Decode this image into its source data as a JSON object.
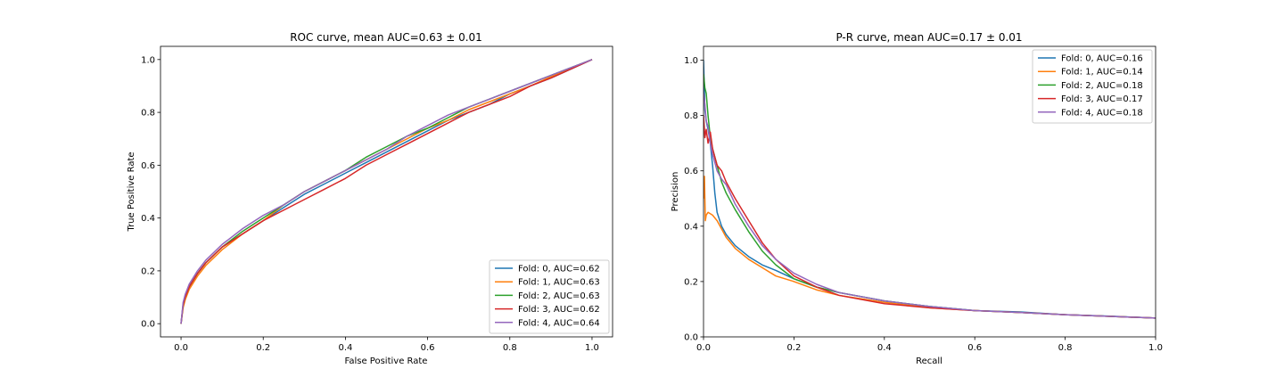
{
  "colors": [
    "#1f77b4",
    "#ff7f0e",
    "#2ca02c",
    "#d62728",
    "#9467bd"
  ],
  "chart_data": [
    {
      "type": "line",
      "title": "ROC curve, mean AUC=0.63 ± 0.01",
      "xlabel": "False Positive Rate",
      "ylabel": "True Positive Rate",
      "xlim": [
        -0.05,
        1.05
      ],
      "ylim": [
        -0.05,
        1.05
      ],
      "xticks": [
        0.0,
        0.2,
        0.4,
        0.6,
        0.8,
        1.0
      ],
      "yticks": [
        0.0,
        0.2,
        0.4,
        0.6,
        0.8,
        1.0
      ],
      "xtick_labels": [
        "0.0",
        "0.2",
        "0.4",
        "0.6",
        "0.8",
        "1.0"
      ],
      "ytick_labels": [
        "0.0",
        "0.2",
        "0.4",
        "0.6",
        "0.8",
        "1.0"
      ],
      "legend_position": "lower-right",
      "series": [
        {
          "name": "Fold: 0, AUC=0.62",
          "x": [
            0,
            0.005,
            0.01,
            0.02,
            0.04,
            0.06,
            0.08,
            0.1,
            0.15,
            0.2,
            0.25,
            0.3,
            0.35,
            0.4,
            0.45,
            0.5,
            0.55,
            0.6,
            0.65,
            0.7,
            0.75,
            0.8,
            0.85,
            0.9,
            0.95,
            1.0
          ],
          "y": [
            0,
            0.07,
            0.1,
            0.14,
            0.19,
            0.23,
            0.26,
            0.29,
            0.34,
            0.39,
            0.44,
            0.49,
            0.53,
            0.57,
            0.61,
            0.65,
            0.69,
            0.73,
            0.77,
            0.8,
            0.83,
            0.87,
            0.9,
            0.93,
            0.965,
            1.0
          ]
        },
        {
          "name": "Fold: 1, AUC=0.63",
          "x": [
            0,
            0.005,
            0.01,
            0.02,
            0.04,
            0.06,
            0.08,
            0.1,
            0.15,
            0.2,
            0.25,
            0.3,
            0.35,
            0.4,
            0.45,
            0.5,
            0.55,
            0.6,
            0.65,
            0.7,
            0.75,
            0.8,
            0.85,
            0.9,
            0.95,
            1.0
          ],
          "y": [
            0,
            0.06,
            0.09,
            0.13,
            0.18,
            0.22,
            0.25,
            0.28,
            0.34,
            0.39,
            0.45,
            0.5,
            0.54,
            0.58,
            0.62,
            0.66,
            0.7,
            0.74,
            0.77,
            0.81,
            0.84,
            0.87,
            0.9,
            0.935,
            0.967,
            1.0
          ]
        },
        {
          "name": "Fold: 2, AUC=0.63",
          "x": [
            0,
            0.005,
            0.01,
            0.02,
            0.04,
            0.06,
            0.08,
            0.1,
            0.15,
            0.2,
            0.25,
            0.3,
            0.35,
            0.4,
            0.45,
            0.5,
            0.55,
            0.6,
            0.65,
            0.7,
            0.75,
            0.8,
            0.85,
            0.9,
            0.95,
            1.0
          ],
          "y": [
            0,
            0.07,
            0.1,
            0.14,
            0.19,
            0.23,
            0.26,
            0.29,
            0.35,
            0.4,
            0.45,
            0.5,
            0.54,
            0.58,
            0.63,
            0.67,
            0.71,
            0.74,
            0.78,
            0.82,
            0.85,
            0.88,
            0.91,
            0.94,
            0.97,
            1.0
          ]
        },
        {
          "name": "Fold: 3, AUC=0.62",
          "x": [
            0,
            0.005,
            0.01,
            0.02,
            0.04,
            0.06,
            0.08,
            0.1,
            0.15,
            0.2,
            0.25,
            0.3,
            0.35,
            0.4,
            0.45,
            0.5,
            0.55,
            0.6,
            0.65,
            0.7,
            0.75,
            0.8,
            0.85,
            0.9,
            0.95,
            1.0
          ],
          "y": [
            0,
            0.07,
            0.1,
            0.14,
            0.19,
            0.23,
            0.26,
            0.29,
            0.34,
            0.39,
            0.43,
            0.47,
            0.51,
            0.55,
            0.6,
            0.64,
            0.68,
            0.72,
            0.76,
            0.8,
            0.83,
            0.86,
            0.9,
            0.93,
            0.965,
            1.0
          ]
        },
        {
          "name": "Fold: 4, AUC=0.64",
          "x": [
            0,
            0.005,
            0.01,
            0.02,
            0.04,
            0.06,
            0.08,
            0.1,
            0.15,
            0.2,
            0.25,
            0.3,
            0.35,
            0.4,
            0.45,
            0.5,
            0.55,
            0.6,
            0.65,
            0.7,
            0.75,
            0.8,
            0.85,
            0.9,
            0.95,
            1.0
          ],
          "y": [
            0,
            0.08,
            0.11,
            0.15,
            0.2,
            0.24,
            0.27,
            0.3,
            0.36,
            0.41,
            0.45,
            0.5,
            0.54,
            0.58,
            0.62,
            0.66,
            0.71,
            0.75,
            0.79,
            0.82,
            0.85,
            0.88,
            0.91,
            0.94,
            0.97,
            1.0
          ]
        }
      ]
    },
    {
      "type": "line",
      "title": "P-R curve, mean AUC=0.17 ± 0.01",
      "xlabel": "Recall",
      "ylabel": "Precision",
      "xlim": [
        0.0,
        1.0
      ],
      "ylim": [
        0.0,
        1.05
      ],
      "xticks": [
        0.0,
        0.2,
        0.4,
        0.6,
        0.8,
        1.0
      ],
      "yticks": [
        0.0,
        0.2,
        0.4,
        0.6,
        0.8,
        1.0
      ],
      "xtick_labels": [
        "0.0",
        "0.2",
        "0.4",
        "0.6",
        "0.8",
        "1.0"
      ],
      "ytick_labels": [
        "0.0",
        "0.2",
        "0.4",
        "0.6",
        "0.8",
        "1.0"
      ],
      "legend_position": "upper-right",
      "series": [
        {
          "name": "Fold: 0, AUC=0.16",
          "x": [
            0,
            0.003,
            0.006,
            0.01,
            0.015,
            0.02,
            0.025,
            0.03,
            0.04,
            0.05,
            0.07,
            0.1,
            0.13,
            0.16,
            0.2,
            0.25,
            0.3,
            0.4,
            0.5,
            0.6,
            0.7,
            0.8,
            0.9,
            1.0
          ],
          "y": [
            1.0,
            0.82,
            0.78,
            0.75,
            0.7,
            0.62,
            0.52,
            0.45,
            0.4,
            0.37,
            0.33,
            0.29,
            0.26,
            0.24,
            0.21,
            0.18,
            0.16,
            0.13,
            0.11,
            0.095,
            0.09,
            0.08,
            0.075,
            0.068
          ]
        },
        {
          "name": "Fold: 1, AUC=0.14",
          "x": [
            0,
            0.002,
            0.004,
            0.006,
            0.01,
            0.02,
            0.03,
            0.04,
            0.05,
            0.07,
            0.1,
            0.13,
            0.16,
            0.2,
            0.25,
            0.3,
            0.4,
            0.5,
            0.6,
            0.7,
            0.8,
            0.9,
            1.0
          ],
          "y": [
            0.5,
            0.58,
            0.42,
            0.44,
            0.45,
            0.44,
            0.42,
            0.39,
            0.36,
            0.32,
            0.28,
            0.25,
            0.22,
            0.2,
            0.17,
            0.15,
            0.125,
            0.105,
            0.095,
            0.088,
            0.08,
            0.074,
            0.068
          ]
        },
        {
          "name": "Fold: 2, AUC=0.18",
          "x": [
            0,
            0.003,
            0.006,
            0.01,
            0.015,
            0.02,
            0.03,
            0.04,
            0.05,
            0.07,
            0.1,
            0.13,
            0.16,
            0.2,
            0.25,
            0.3,
            0.4,
            0.5,
            0.6,
            0.7,
            0.8,
            0.9,
            1.0
          ],
          "y": [
            0.95,
            0.9,
            0.88,
            0.8,
            0.72,
            0.68,
            0.62,
            0.56,
            0.52,
            0.46,
            0.38,
            0.31,
            0.26,
            0.21,
            0.18,
            0.16,
            0.13,
            0.11,
            0.095,
            0.088,
            0.08,
            0.074,
            0.068
          ]
        },
        {
          "name": "Fold: 3, AUC=0.17",
          "x": [
            0,
            0.003,
            0.006,
            0.01,
            0.015,
            0.02,
            0.03,
            0.04,
            0.05,
            0.07,
            0.1,
            0.13,
            0.16,
            0.2,
            0.25,
            0.3,
            0.4,
            0.5,
            0.6,
            0.7,
            0.8,
            0.9,
            1.0
          ],
          "y": [
            0.8,
            0.72,
            0.75,
            0.7,
            0.74,
            0.68,
            0.62,
            0.6,
            0.56,
            0.5,
            0.42,
            0.34,
            0.28,
            0.22,
            0.18,
            0.15,
            0.12,
            0.105,
            0.095,
            0.088,
            0.08,
            0.074,
            0.068
          ]
        },
        {
          "name": "Fold: 4, AUC=0.18",
          "x": [
            0,
            0.003,
            0.006,
            0.01,
            0.015,
            0.02,
            0.03,
            0.04,
            0.05,
            0.07,
            0.1,
            0.13,
            0.16,
            0.2,
            0.25,
            0.3,
            0.4,
            0.5,
            0.6,
            0.7,
            0.8,
            0.9,
            1.0
          ],
          "y": [
            0.88,
            0.84,
            0.78,
            0.76,
            0.7,
            0.66,
            0.6,
            0.57,
            0.55,
            0.48,
            0.4,
            0.33,
            0.28,
            0.23,
            0.19,
            0.16,
            0.13,
            0.11,
            0.095,
            0.088,
            0.08,
            0.074,
            0.068
          ]
        }
      ]
    }
  ]
}
